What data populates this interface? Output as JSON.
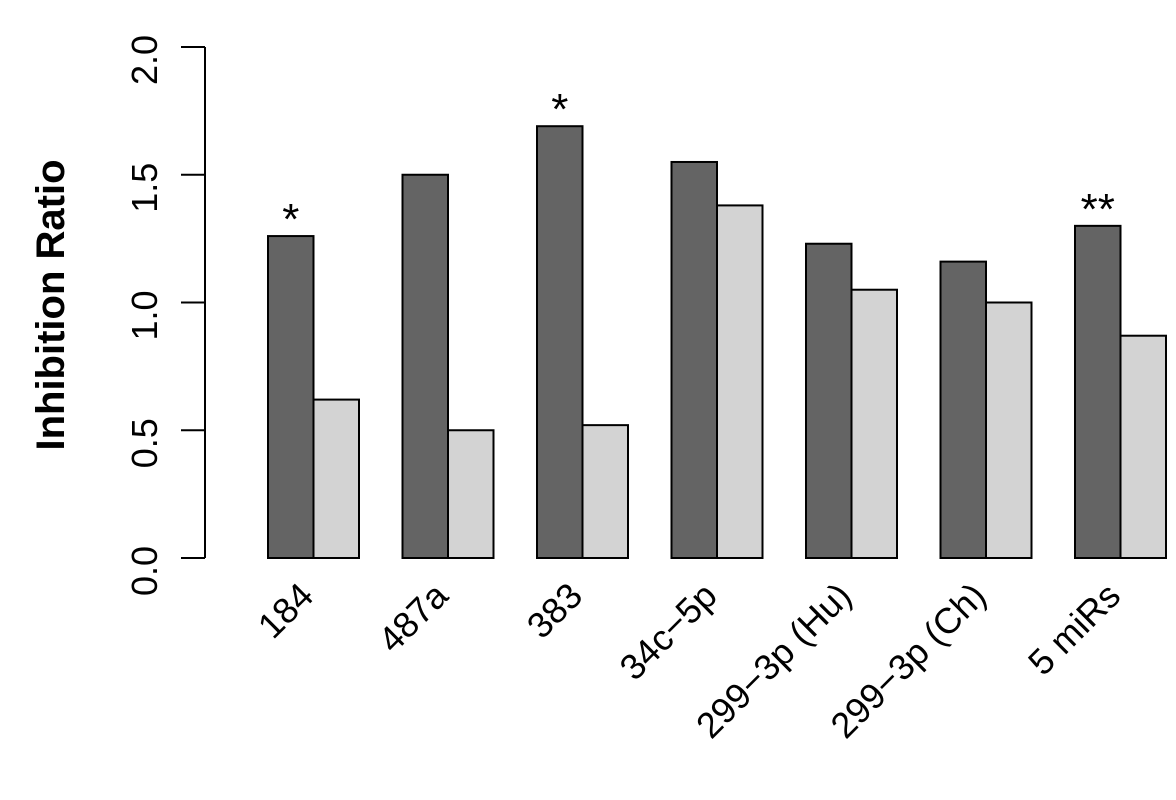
{
  "chart_data": {
    "type": "bar",
    "ylabel": "Inhibition Ratio",
    "xlabel": "",
    "title": "",
    "ylim": [
      0,
      2
    ],
    "y_ticks": [
      "0.0",
      "0.5",
      "1.0",
      "1.5",
      "2.0"
    ],
    "y_tick_values": [
      0,
      0.5,
      1.0,
      1.5,
      2.0
    ],
    "categories": [
      "184",
      "487a",
      "383",
      "34c−5p",
      "299−3p (Hu)",
      "299−3p (Ch)",
      "5 miRs"
    ],
    "series": [
      {
        "color": "#646464",
        "values": [
          1.26,
          1.5,
          1.69,
          1.55,
          1.23,
          1.16,
          1.3
        ]
      },
      {
        "color": "#d3d3d3",
        "values": [
          0.62,
          0.5,
          0.52,
          1.38,
          1.05,
          1.0,
          0.87
        ]
      }
    ],
    "annotations": [
      "*",
      "",
      "*",
      "",
      "",
      "",
      "**"
    ],
    "grid": false,
    "legend": "none"
  }
}
